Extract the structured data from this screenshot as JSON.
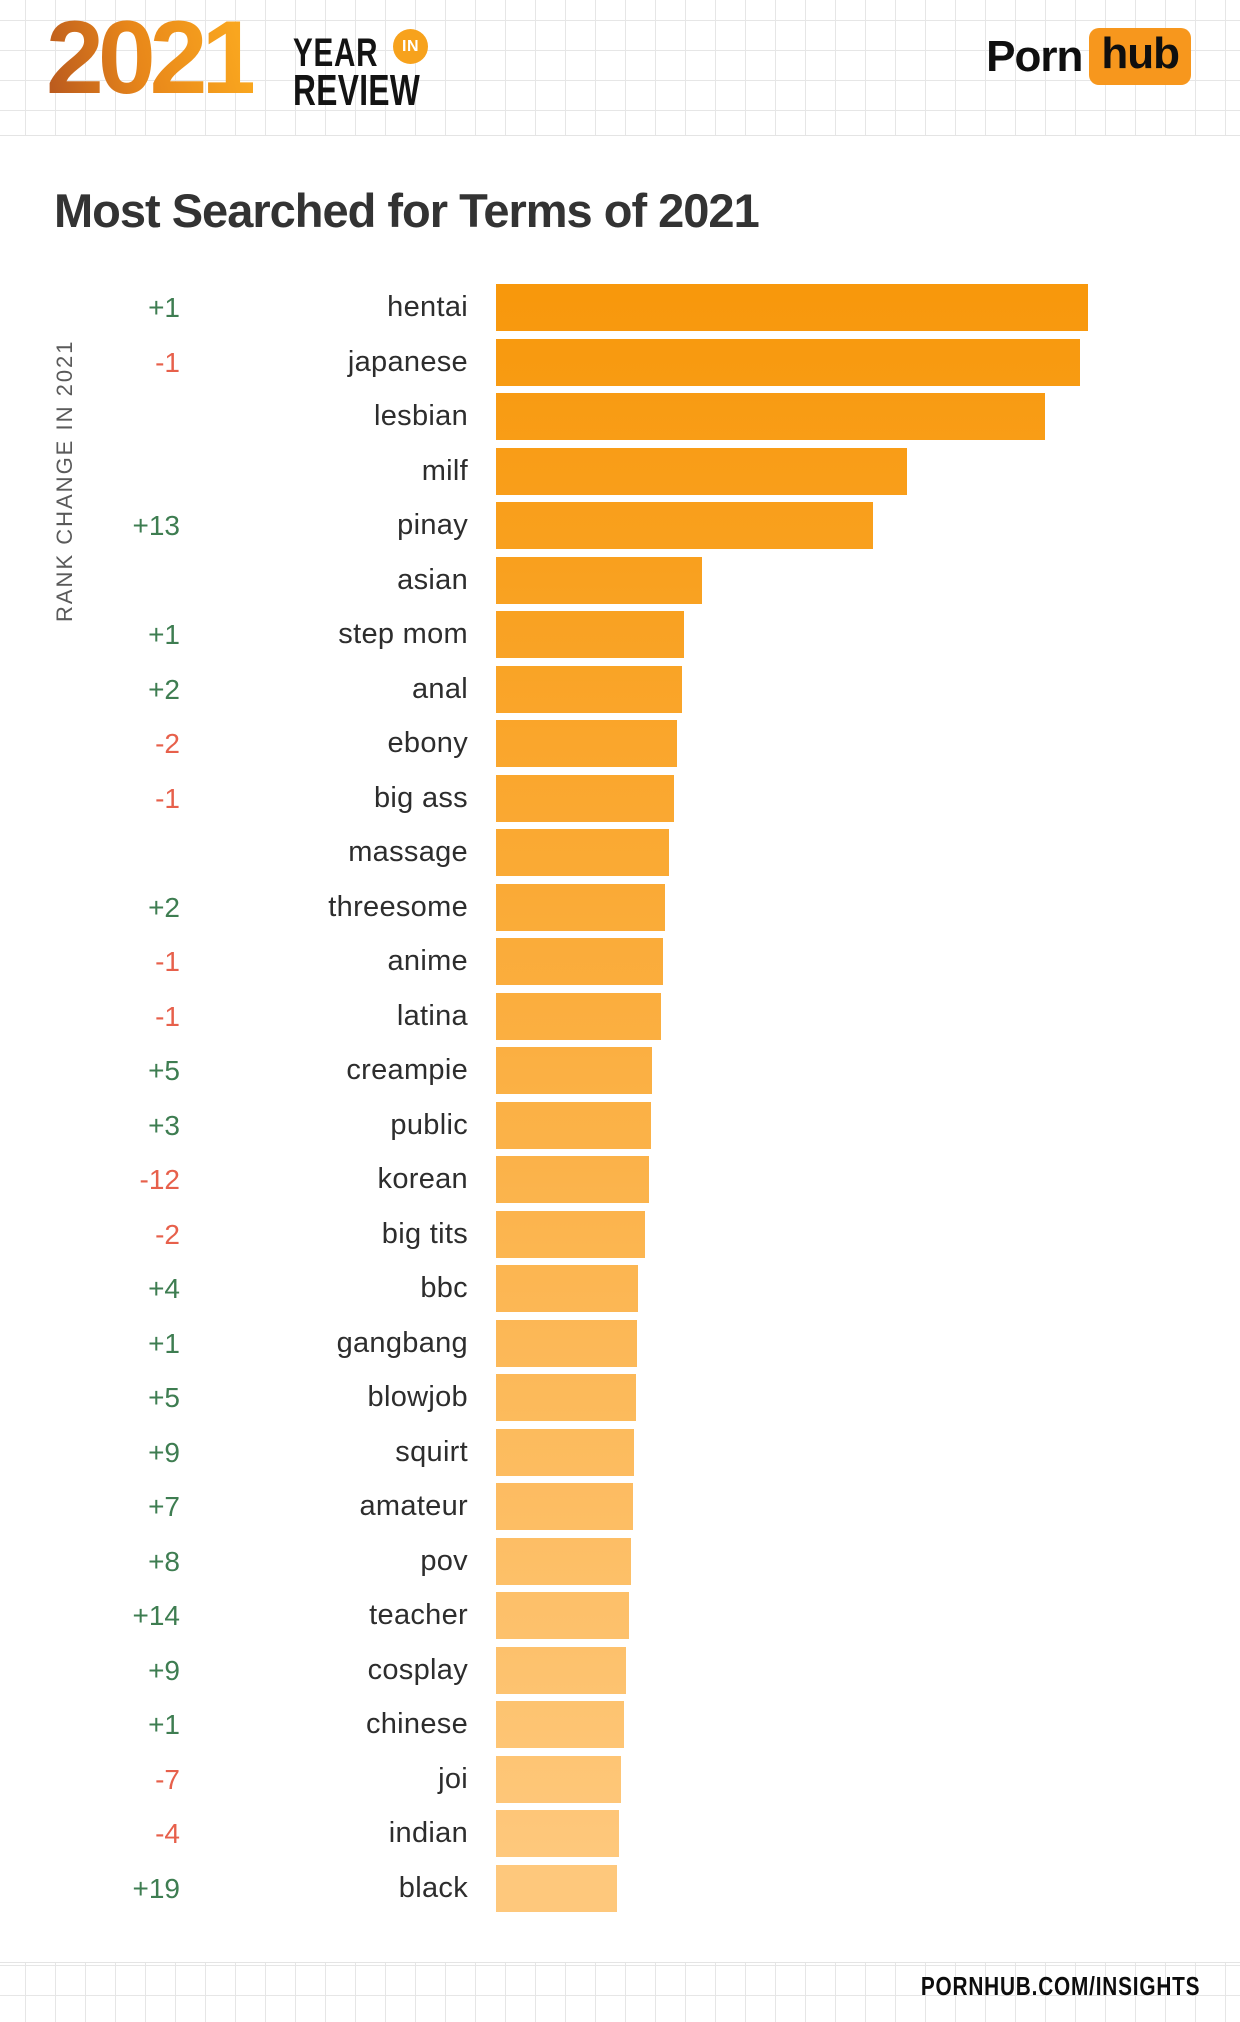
{
  "header": {
    "year": "2021",
    "year_word": "YEAR",
    "in_word": "IN",
    "review_word": "REVIEW",
    "brand_porn": "Porn",
    "brand_hub": "hub"
  },
  "title": "Most Searched for Terms of 2021",
  "footer": {
    "site": "PORNHUB.COM/INSIGHTS"
  },
  "colors": {
    "brand_orange": "#F7971D",
    "title_color": "#333333",
    "grid_line": "#E6E6E6",
    "positive_change": "#3E7D51",
    "negative_change": "#E7604B",
    "bar_gradient_start": "#F8980B",
    "bar_gradient_end": "#FEC87C"
  },
  "chart_data": {
    "type": "bar",
    "orientation": "horizontal",
    "title": "Most Searched for Terms of 2021",
    "axis_label": "RANK CHANGE IN 2021",
    "legend": "none",
    "grid": "off",
    "value_unit": "relative search volume, % of top term",
    "xlim": [
      0,
      100
    ],
    "categories": [
      "hentai",
      "japanese",
      "lesbian",
      "milf",
      "pinay",
      "asian",
      "step mom",
      "anal",
      "ebony",
      "big ass",
      "massage",
      "threesome",
      "anime",
      "latina",
      "creampie",
      "public",
      "korean",
      "big tits",
      "bbc",
      "gangbang",
      "blowjob",
      "squirt",
      "amateur",
      "pov",
      "teacher",
      "cosplay",
      "chinese",
      "joi",
      "indian",
      "black"
    ],
    "values": [
      100,
      98.6,
      92.7,
      69.4,
      63.7,
      34.8,
      31.8,
      31.4,
      30.6,
      30.1,
      29.2,
      28.5,
      28.2,
      27.9,
      26.4,
      26.2,
      25.8,
      25.2,
      24.0,
      23.8,
      23.6,
      23.3,
      23.1,
      22.8,
      22.5,
      22.0,
      21.6,
      21.1,
      20.8,
      20.4
    ],
    "rank_changes": [
      "+1",
      "-1",
      "",
      "",
      "+13",
      "",
      "+1",
      "+2",
      "-2",
      "-1",
      "",
      "+2",
      "-1",
      "-1",
      "+5",
      "+3",
      "-12",
      "-2",
      "+4",
      "+1",
      "+5",
      "+9",
      "+7",
      "+8",
      "+14",
      "+9",
      "+1",
      "-7",
      "-4",
      "+19"
    ],
    "bar_color_start": "#F8980B",
    "bar_color_end": "#FEC87C"
  }
}
